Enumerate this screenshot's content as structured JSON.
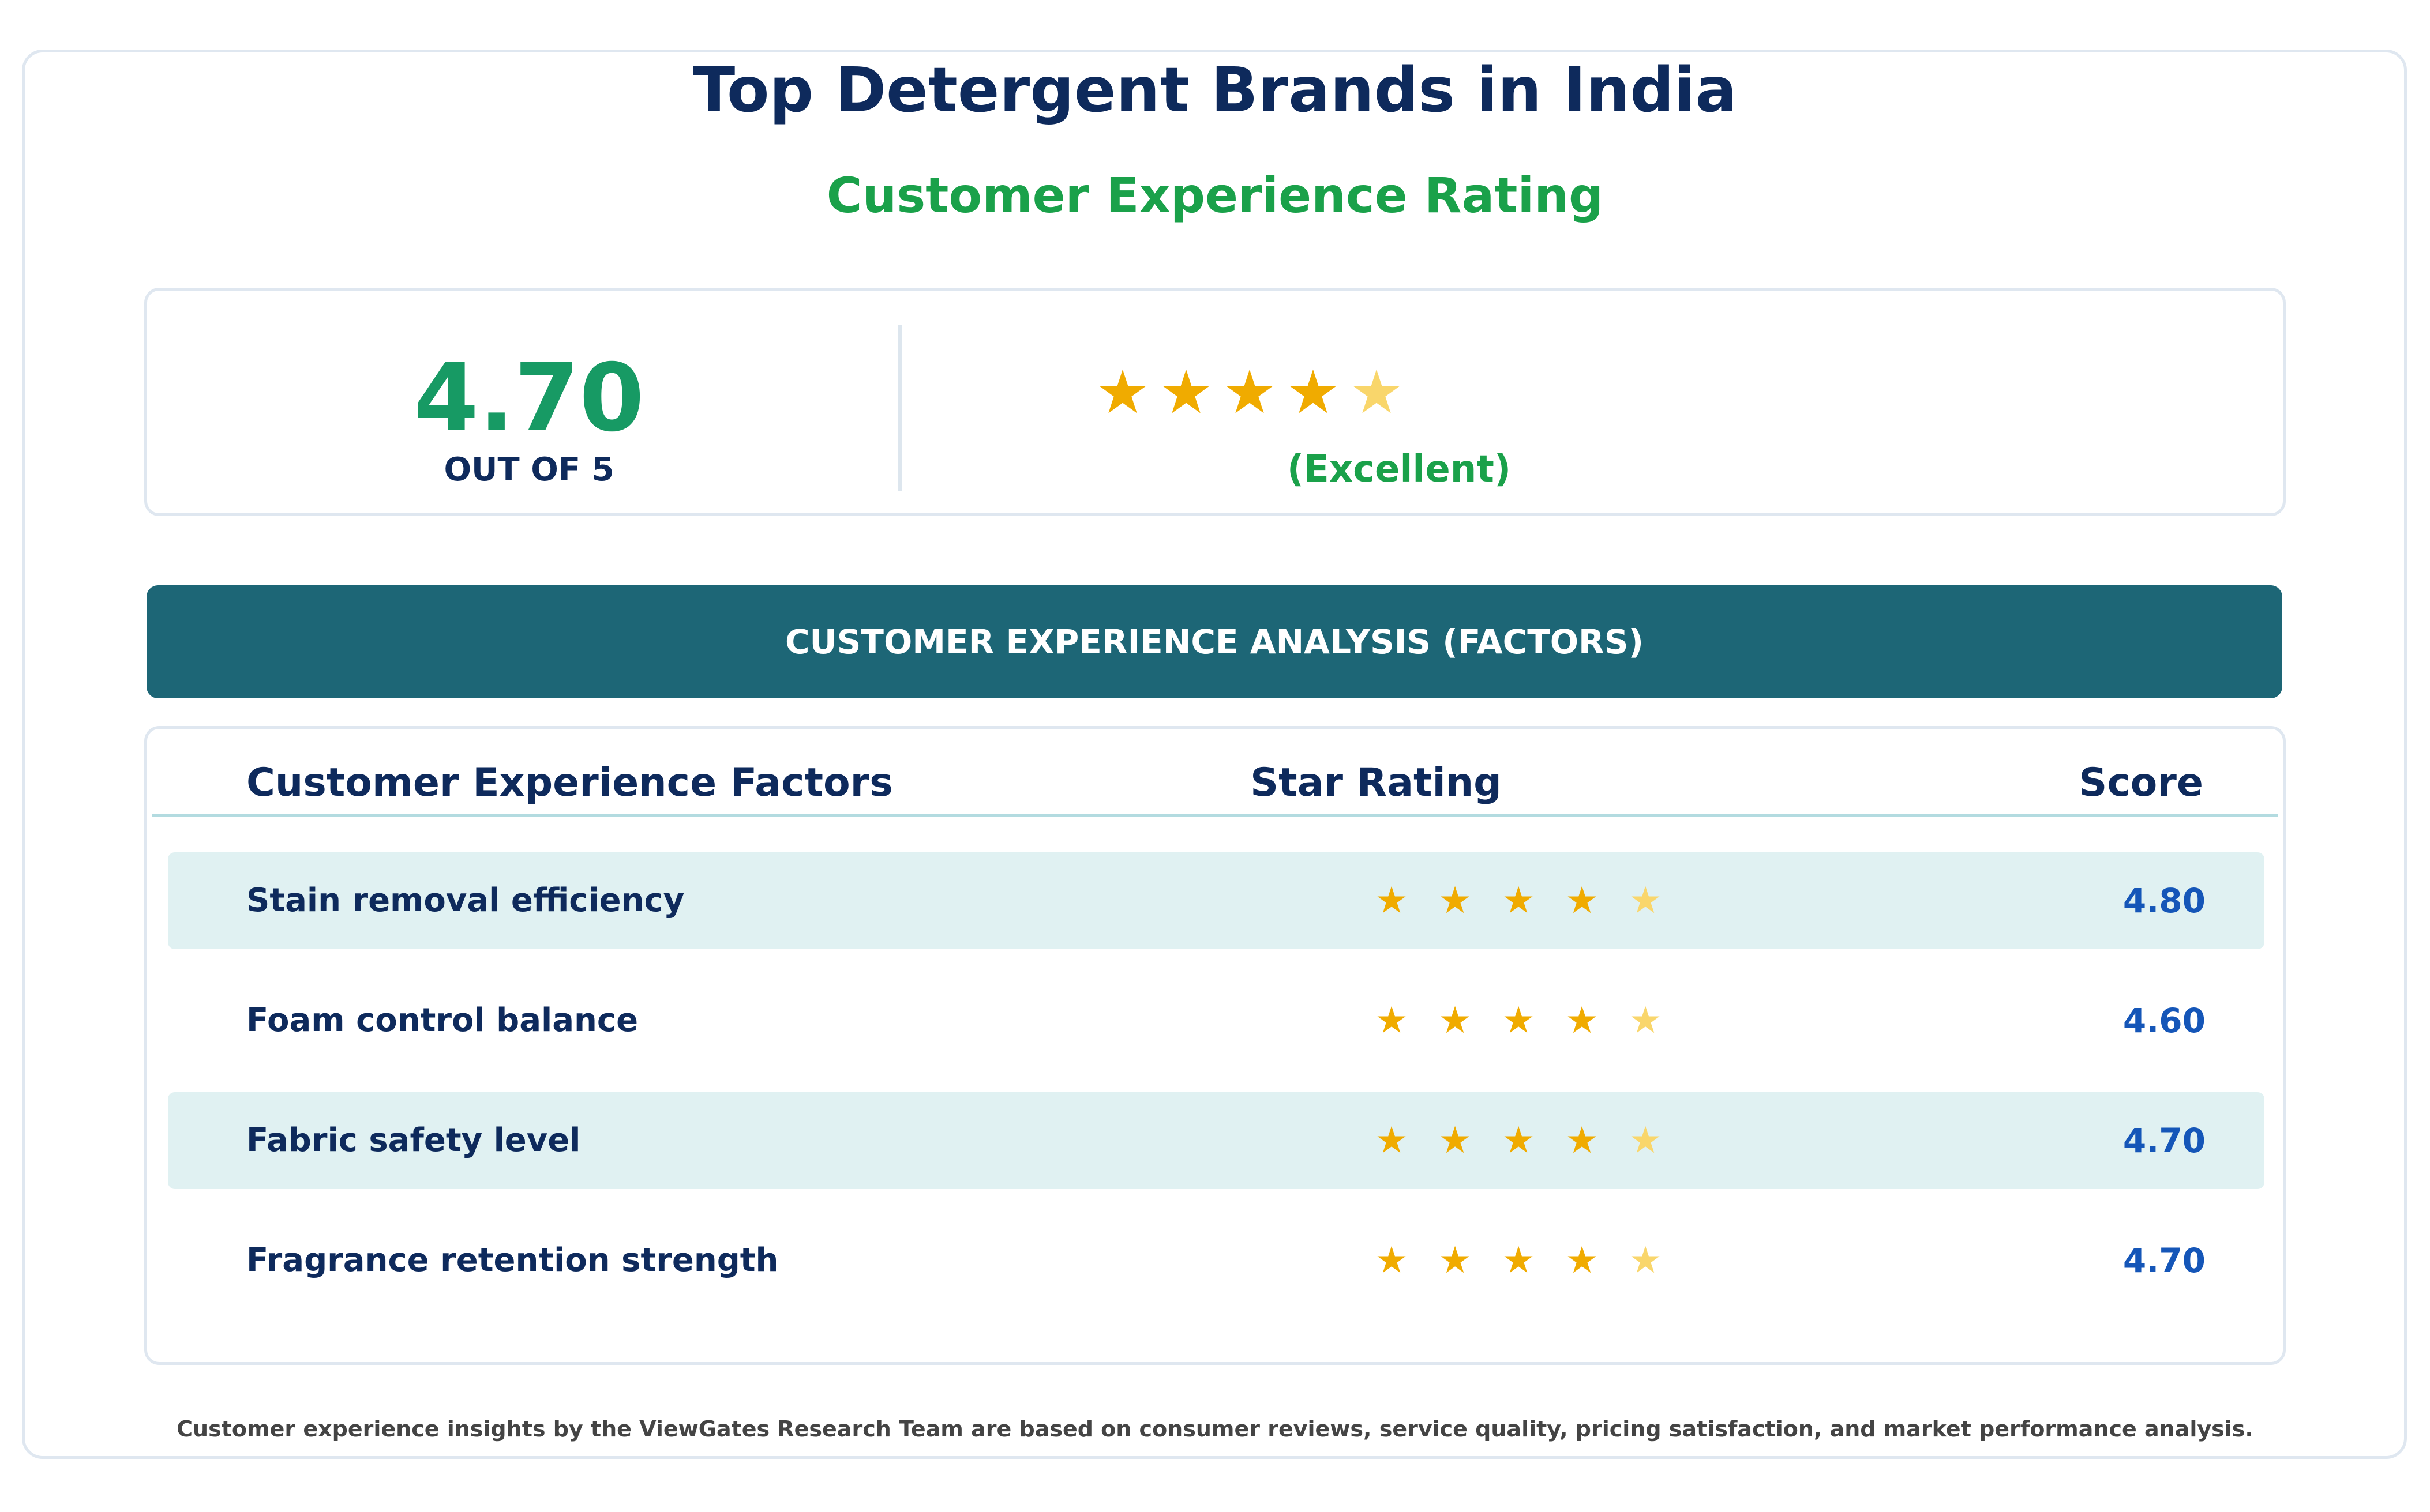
{
  "header": {
    "title": "Top Detergent Brands in India",
    "subtitle": "Customer Experience Rating"
  },
  "summary": {
    "score": "4.70",
    "out_of": "OUT OF 5",
    "star_rating": 4.7,
    "stars": [
      "★",
      "★",
      "★",
      "★",
      "★"
    ],
    "label": "(Excellent)"
  },
  "banner": {
    "title": "CUSTOMER EXPERIENCE ANALYSIS (FACTORS)"
  },
  "table": {
    "headers": {
      "factor": "Customer Experience Factors",
      "stars": "Star Rating",
      "score": "Score"
    },
    "rows": [
      {
        "factor": "Stain removal efficiency",
        "stars": [
          "★",
          "★",
          "★",
          "★",
          "★"
        ],
        "score": "4.80",
        "rating": 4.8
      },
      {
        "factor": "Foam control balance",
        "stars": [
          "★",
          "★",
          "★",
          "★",
          "★"
        ],
        "score": "4.60",
        "rating": 4.6
      },
      {
        "factor": "Fabric safety level",
        "stars": [
          "★",
          "★",
          "★",
          "★",
          "★"
        ],
        "score": "4.70",
        "rating": 4.7
      },
      {
        "factor": "Fragrance retention strength",
        "stars": [
          "★",
          "★",
          "★",
          "★",
          "★"
        ],
        "score": "4.70",
        "rating": 4.7
      }
    ]
  },
  "footer": {
    "note": "Customer experience insights by the ViewGates Research Team are based on consumer reviews, service quality, pricing satisfaction, and market performance analysis."
  },
  "colors": {
    "title": "#0e2a5c",
    "accent_green": "#1aa14a",
    "score_green": "#179a64",
    "banner": "#1d6676",
    "star_full": "#f0ab00",
    "star_partial": "#f9d66b",
    "score_blue": "#1556b8",
    "row_shade": "#e0f1f2"
  }
}
